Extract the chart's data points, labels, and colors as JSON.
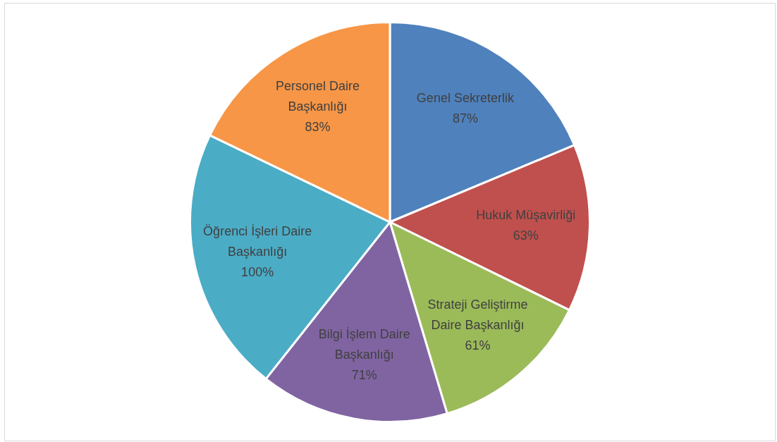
{
  "chart_data": {
    "type": "pie",
    "categories": [
      "Genel Sekreterlik",
      "Hukuk Müşavirliği",
      "Strateji Geliştirme Daire Başkanlığı",
      "Bilgi İşlem Daire Başkanlığı",
      "Öğrenci İşleri Daire Başkanlığı",
      "Personel Daire Başkanlığı"
    ],
    "values": [
      87,
      63,
      61,
      71,
      100,
      83
    ],
    "colors": [
      "#4f81bd",
      "#c0504d",
      "#9bbb59",
      "#8064a2",
      "#4bacc6",
      "#f79646"
    ],
    "value_labels": [
      "87%",
      "63%",
      "61%",
      "71%",
      "100%",
      "83%"
    ],
    "legend": false
  }
}
